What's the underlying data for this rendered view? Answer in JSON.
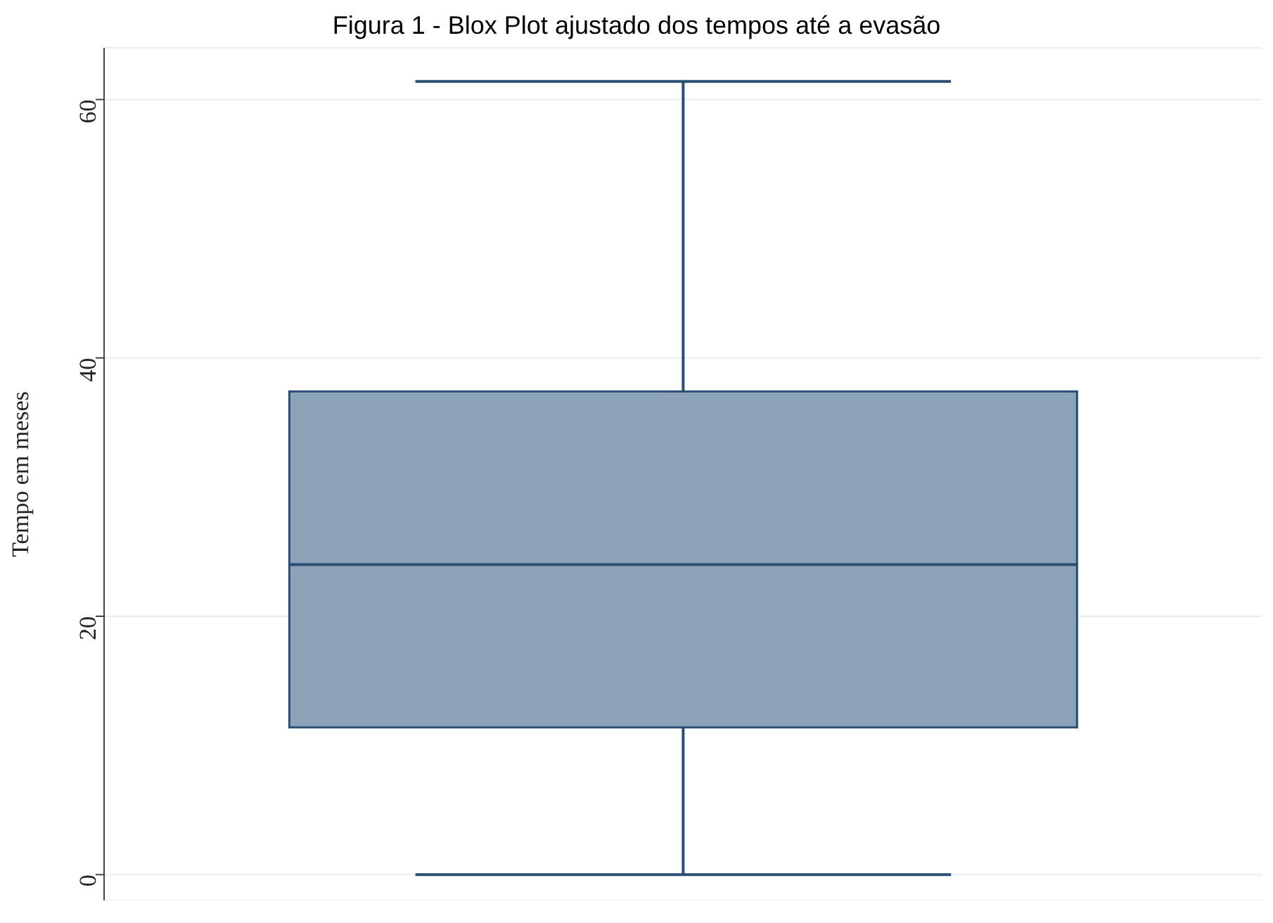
{
  "chart_data": {
    "type": "box",
    "title": "Figura 1 - Blox Plot ajustado dos tempos até a evasão",
    "ylabel": "Tempo em meses",
    "categories": [
      null
    ],
    "series": [
      {
        "color": "#8ca2b8",
        "boxes": [
          {
            "low": 0,
            "q1": 11.4,
            "median": 24.0,
            "q3": 37.4,
            "high": 61.4
          }
        ]
      }
    ],
    "ylim": [
      -2,
      64
    ],
    "yticks": [
      0,
      20,
      40,
      60
    ],
    "grid": "y",
    "tick_labels": "y"
  }
}
